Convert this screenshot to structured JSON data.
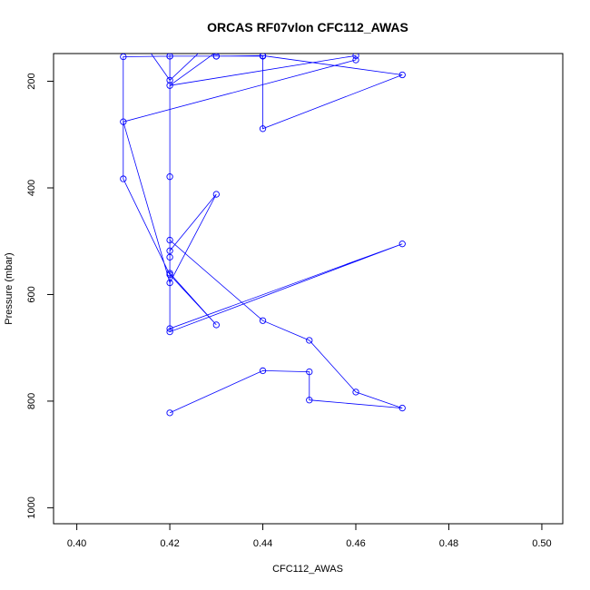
{
  "chart_data": {
    "type": "line",
    "title": "ORCAS RF07vlon CFC112_AWAS",
    "xlabel": "CFC112_AWAS",
    "ylabel": "Pressure (mbar)",
    "xlim": [
      0.395,
      0.5045
    ],
    "ylim": [
      1030,
      148
    ],
    "y_reversed": true,
    "xticks": [
      "0.40",
      "0.42",
      "0.44",
      "0.46",
      "0.48",
      "0.50"
    ],
    "xtick_values": [
      0.4,
      0.42,
      0.44,
      0.46,
      0.48,
      0.5
    ],
    "yticks": [
      "200",
      "400",
      "600",
      "800",
      "1000"
    ],
    "ytick_values": [
      200,
      400,
      600,
      800,
      1000
    ],
    "grid": false,
    "series_color": "#0000ff",
    "markers": "open-circle",
    "series": [
      {
        "x": [
          0.42,
          0.44,
          0.45,
          0.45,
          0.47,
          0.46,
          0.45,
          0.44,
          0.42,
          0.42,
          0.42,
          0.42,
          0.43,
          0.42,
          0.41,
          0.46,
          0.46,
          0.42,
          0.43,
          0.41,
          0.415,
          0.42,
          0.43,
          0.42,
          0.42,
          0.47,
          0.42,
          0.42,
          0.43,
          0.42,
          0.41,
          0.41,
          0.42,
          0.43,
          0.44,
          0.44,
          0.47,
          0.44,
          0.43,
          0.42
        ],
        "y": [
          822,
          743,
          745,
          798,
          813,
          783,
          686,
          649,
          498,
          530,
          379,
          518,
          412,
          578,
          276,
          160,
          152,
          208,
          145,
          140,
          136,
          198,
          116,
          130,
          664,
          505,
          670,
          560,
          657,
          563,
          383,
          154,
          153,
          153,
          153,
          289,
          188,
          152,
          153,
          153
        ]
      }
    ]
  }
}
